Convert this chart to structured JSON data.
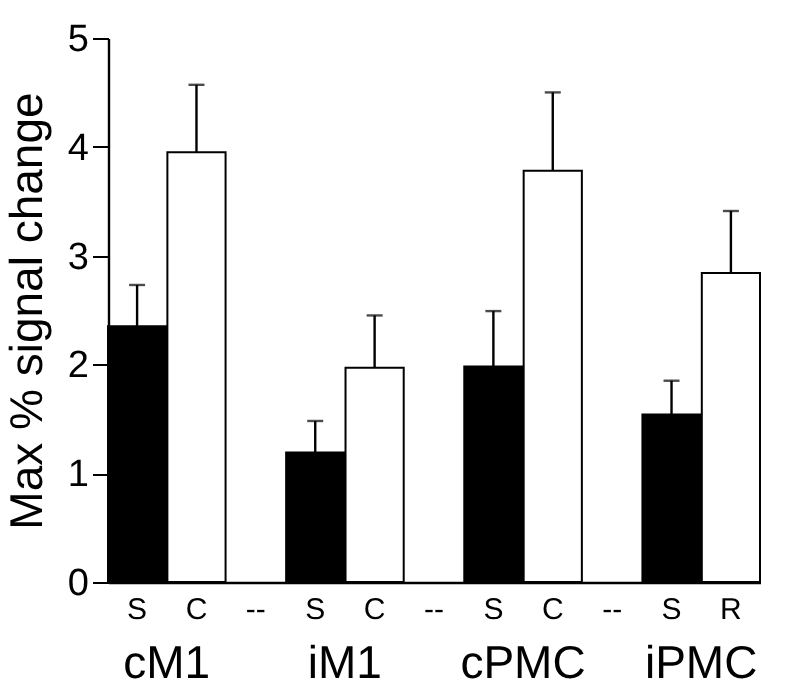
{
  "chart_data": {
    "type": "bar",
    "ylabel": "Max % signal change",
    "categories": [
      "S",
      "C",
      "--",
      "S",
      "C",
      "--",
      "S",
      "C",
      "--",
      "S",
      "R"
    ],
    "values": [
      2.35,
      3.95,
      null,
      1.19,
      1.97,
      null,
      1.98,
      3.78,
      null,
      1.54,
      2.84
    ],
    "colors": [
      "#000000",
      "#ffffff",
      null,
      "#000000",
      "#ffffff",
      null,
      "#000000",
      "#ffffff",
      null,
      "#000000",
      "#ffffff"
    ],
    "errors": [
      [
        2.35,
        2.73
      ],
      [
        3.95,
        4.57
      ],
      null,
      [
        1.19,
        1.48
      ],
      [
        1.97,
        2.45
      ],
      null,
      [
        1.98,
        2.49
      ],
      [
        3.78,
        4.5
      ],
      null,
      [
        1.54,
        1.85
      ],
      [
        2.84,
        3.41
      ]
    ],
    "annotations": [
      "cM1",
      "iM1",
      "cPMC",
      "iPMC"
    ],
    "ylim": [
      0,
      5
    ],
    "yticks": [
      0,
      1,
      2,
      3,
      4,
      5
    ],
    "grid": false
  }
}
